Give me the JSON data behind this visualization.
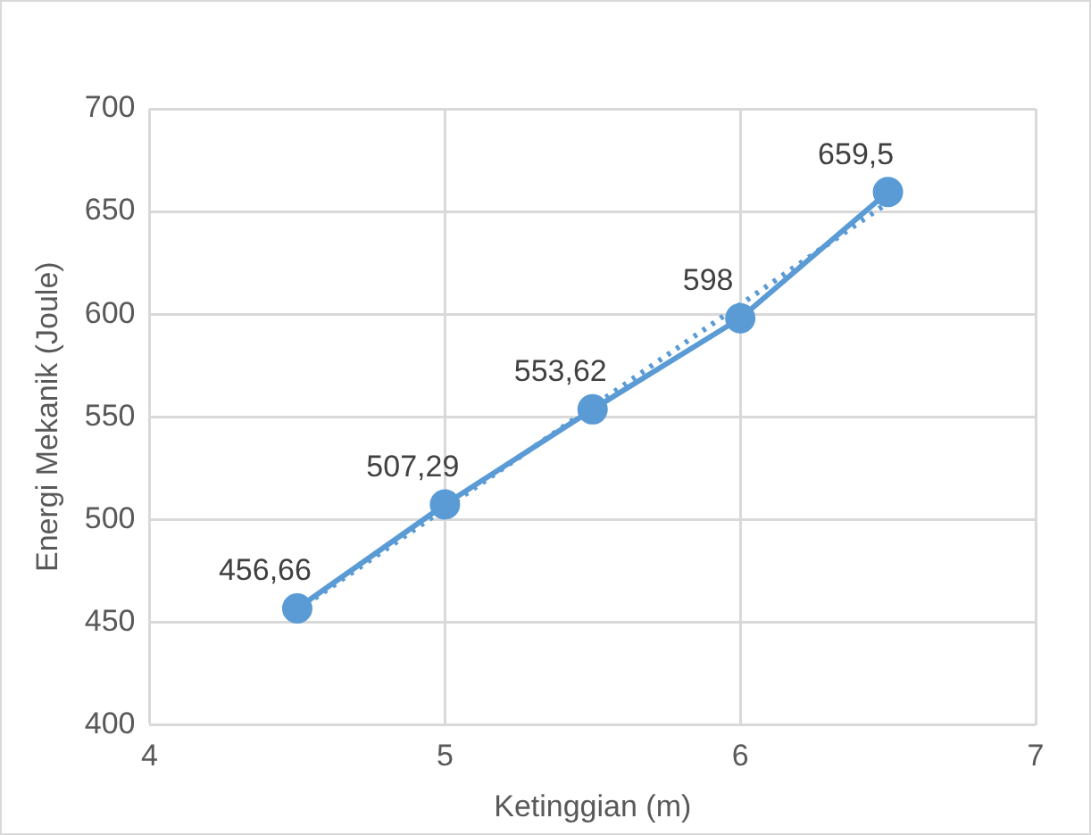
{
  "chart_data": {
    "type": "line",
    "xlabel": "Ketinggian (m)",
    "ylabel": "Energi Mekanik (Joule)",
    "xlim": [
      4,
      7
    ],
    "xticks": [
      4,
      5,
      6,
      7
    ],
    "ylim": [
      400,
      700
    ],
    "yticks": [
      400,
      450,
      500,
      550,
      600,
      650,
      700
    ],
    "grid": true,
    "legend": false,
    "marker": "circle",
    "x": [
      4.5,
      5,
      5.5,
      6,
      6.5
    ],
    "series": [
      {
        "color": "#5b9bd5",
        "values": [
          456.66,
          507.29,
          553.62,
          598,
          659.5
        ],
        "value_labels": [
          "456,66",
          "507,29",
          "553,62",
          "598",
          "659,5"
        ]
      },
      {
        "type": "line",
        "color": "#5b9bd5",
        "x": [
          4.5,
          6.5
        ],
        "values": [
          455.7,
          654.3
        ],
        "line_style": "dotted",
        "marker": "none"
      }
    ]
  }
}
